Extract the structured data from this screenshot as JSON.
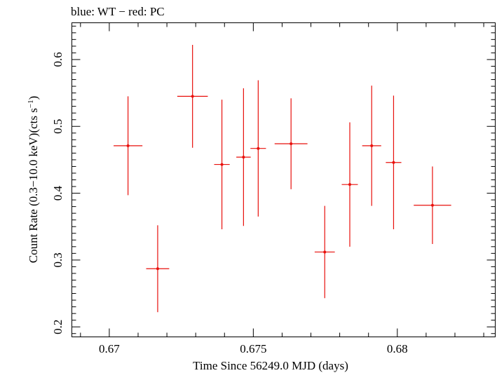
{
  "chart_data": {
    "type": "scatter",
    "title": "blue: WT − red: PC",
    "xlabel": "Time Since 56249.0 MJD (days)",
    "ylabel_main": "Count Rate (0.3−10.0 keV)(cts s",
    "ylabel_sup": "−1",
    "ylabel_close": ")",
    "xlim": [
      0.6687,
      0.6834
    ],
    "ylim": [
      0.185,
      0.655
    ],
    "xticks": [
      0.67,
      0.675,
      0.68
    ],
    "xtick_labels": [
      "0.67",
      "0.675",
      "0.68"
    ],
    "yticks": [
      0.2,
      0.3,
      0.4,
      0.5,
      0.6
    ],
    "ytick_labels": [
      "0.2",
      "0.3",
      "0.4",
      "0.5",
      "0.6"
    ],
    "grid": false,
    "series": [
      {
        "name": "PC",
        "color": "#e8100c",
        "points": [
          {
            "x": 0.67065,
            "xerr": 0.0005,
            "y": 0.471,
            "yerr": 0.074
          },
          {
            "x": 0.67168,
            "xerr": 0.0004,
            "y": 0.287,
            "yerr": 0.065
          },
          {
            "x": 0.67289,
            "xerr": 0.00053,
            "y": 0.545,
            "yerr": 0.077
          },
          {
            "x": 0.67391,
            "xerr": 0.00027,
            "y": 0.443,
            "yerr": 0.097
          },
          {
            "x": 0.67466,
            "xerr": 0.00025,
            "y": 0.454,
            "yerr": 0.103
          },
          {
            "x": 0.67517,
            "xerr": 0.00027,
            "y": 0.467,
            "yerr": 0.102
          },
          {
            "x": 0.67631,
            "xerr": 0.00057,
            "y": 0.474,
            "yerr": 0.068
          },
          {
            "x": 0.67748,
            "xerr": 0.00035,
            "y": 0.312,
            "yerr": 0.069
          },
          {
            "x": 0.67835,
            "xerr": 0.00028,
            "y": 0.413,
            "yerr": 0.093
          },
          {
            "x": 0.67911,
            "xerr": 0.00033,
            "y": 0.471,
            "yerr": 0.09
          },
          {
            "x": 0.67987,
            "xerr": 0.00027,
            "y": 0.446,
            "yerr": 0.1
          },
          {
            "x": 0.68122,
            "xerr": 0.00065,
            "y": 0.382,
            "yerr": 0.058
          }
        ]
      }
    ]
  }
}
